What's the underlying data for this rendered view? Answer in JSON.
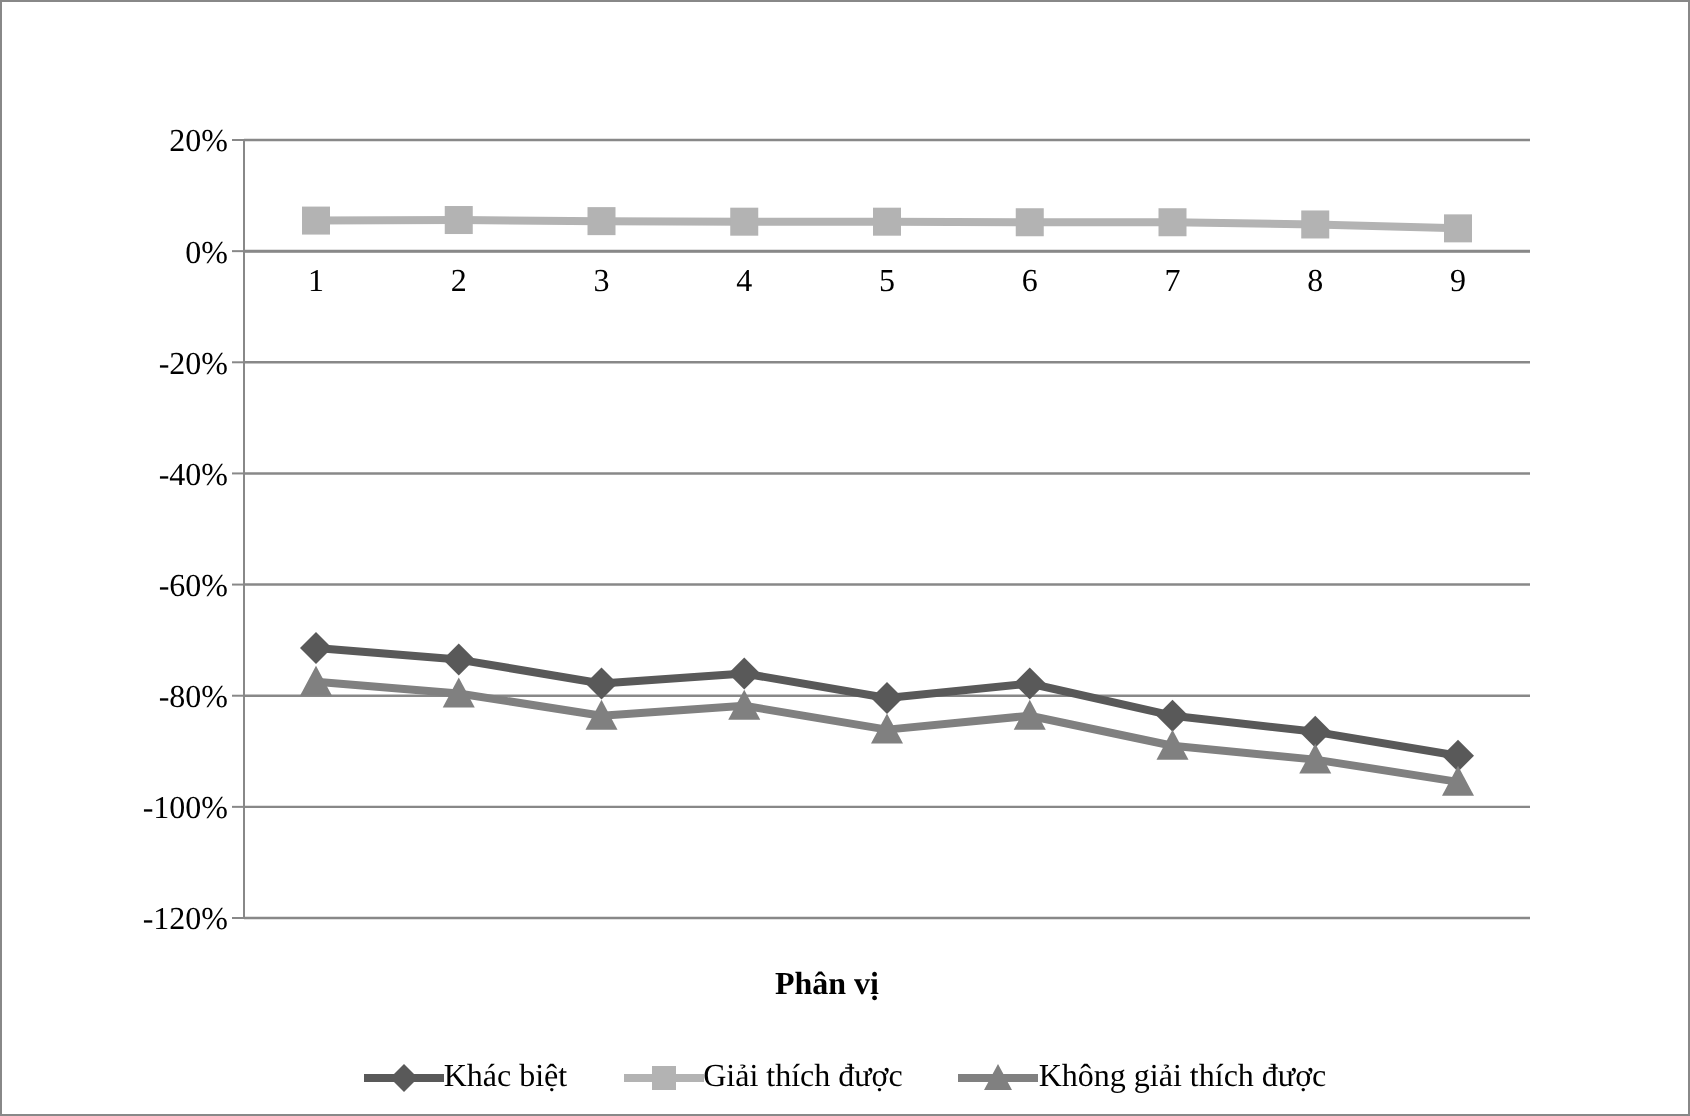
{
  "chart_data": {
    "type": "line",
    "xlabel": "Phân vị",
    "categories": [
      "1",
      "2",
      "3",
      "4",
      "5",
      "6",
      "7",
      "8",
      "9"
    ],
    "series": [
      {
        "name": "Khác biệt",
        "color": "#595959",
        "marker": "diamond",
        "values": [
          -71.4,
          -73.5,
          -77.8,
          -76,
          -80.4,
          -77.8,
          -83.6,
          -86.5,
          -90.8
        ]
      },
      {
        "name": "Giải thích được",
        "color": "#b3b3b3",
        "marker": "square",
        "values": [
          5.5,
          5.6,
          5.4,
          5.3,
          5.3,
          5.2,
          5.2,
          4.8,
          4.1
        ]
      },
      {
        "name": "Không giải thích được",
        "color": "#808080",
        "marker": "triangle",
        "values": [
          -77.5,
          -79.6,
          -83.6,
          -81.8,
          -86.1,
          -83.6,
          -89,
          -91.5,
          -95.5
        ]
      }
    ],
    "ylim": [
      -120,
      20
    ],
    "yticks": [
      {
        "value": -120,
        "label": "-120%"
      },
      {
        "value": -100,
        "label": "-100%"
      },
      {
        "value": -80,
        "label": "-80%"
      },
      {
        "value": -60,
        "label": "-60%"
      },
      {
        "value": -40,
        "label": "-40%"
      },
      {
        "value": -20,
        "label": "-20%"
      },
      {
        "value": 0,
        "label": "0%"
      },
      {
        "value": 20,
        "label": "20%"
      }
    ],
    "grid": "y",
    "legend": "bottom",
    "line_style": "solid"
  }
}
